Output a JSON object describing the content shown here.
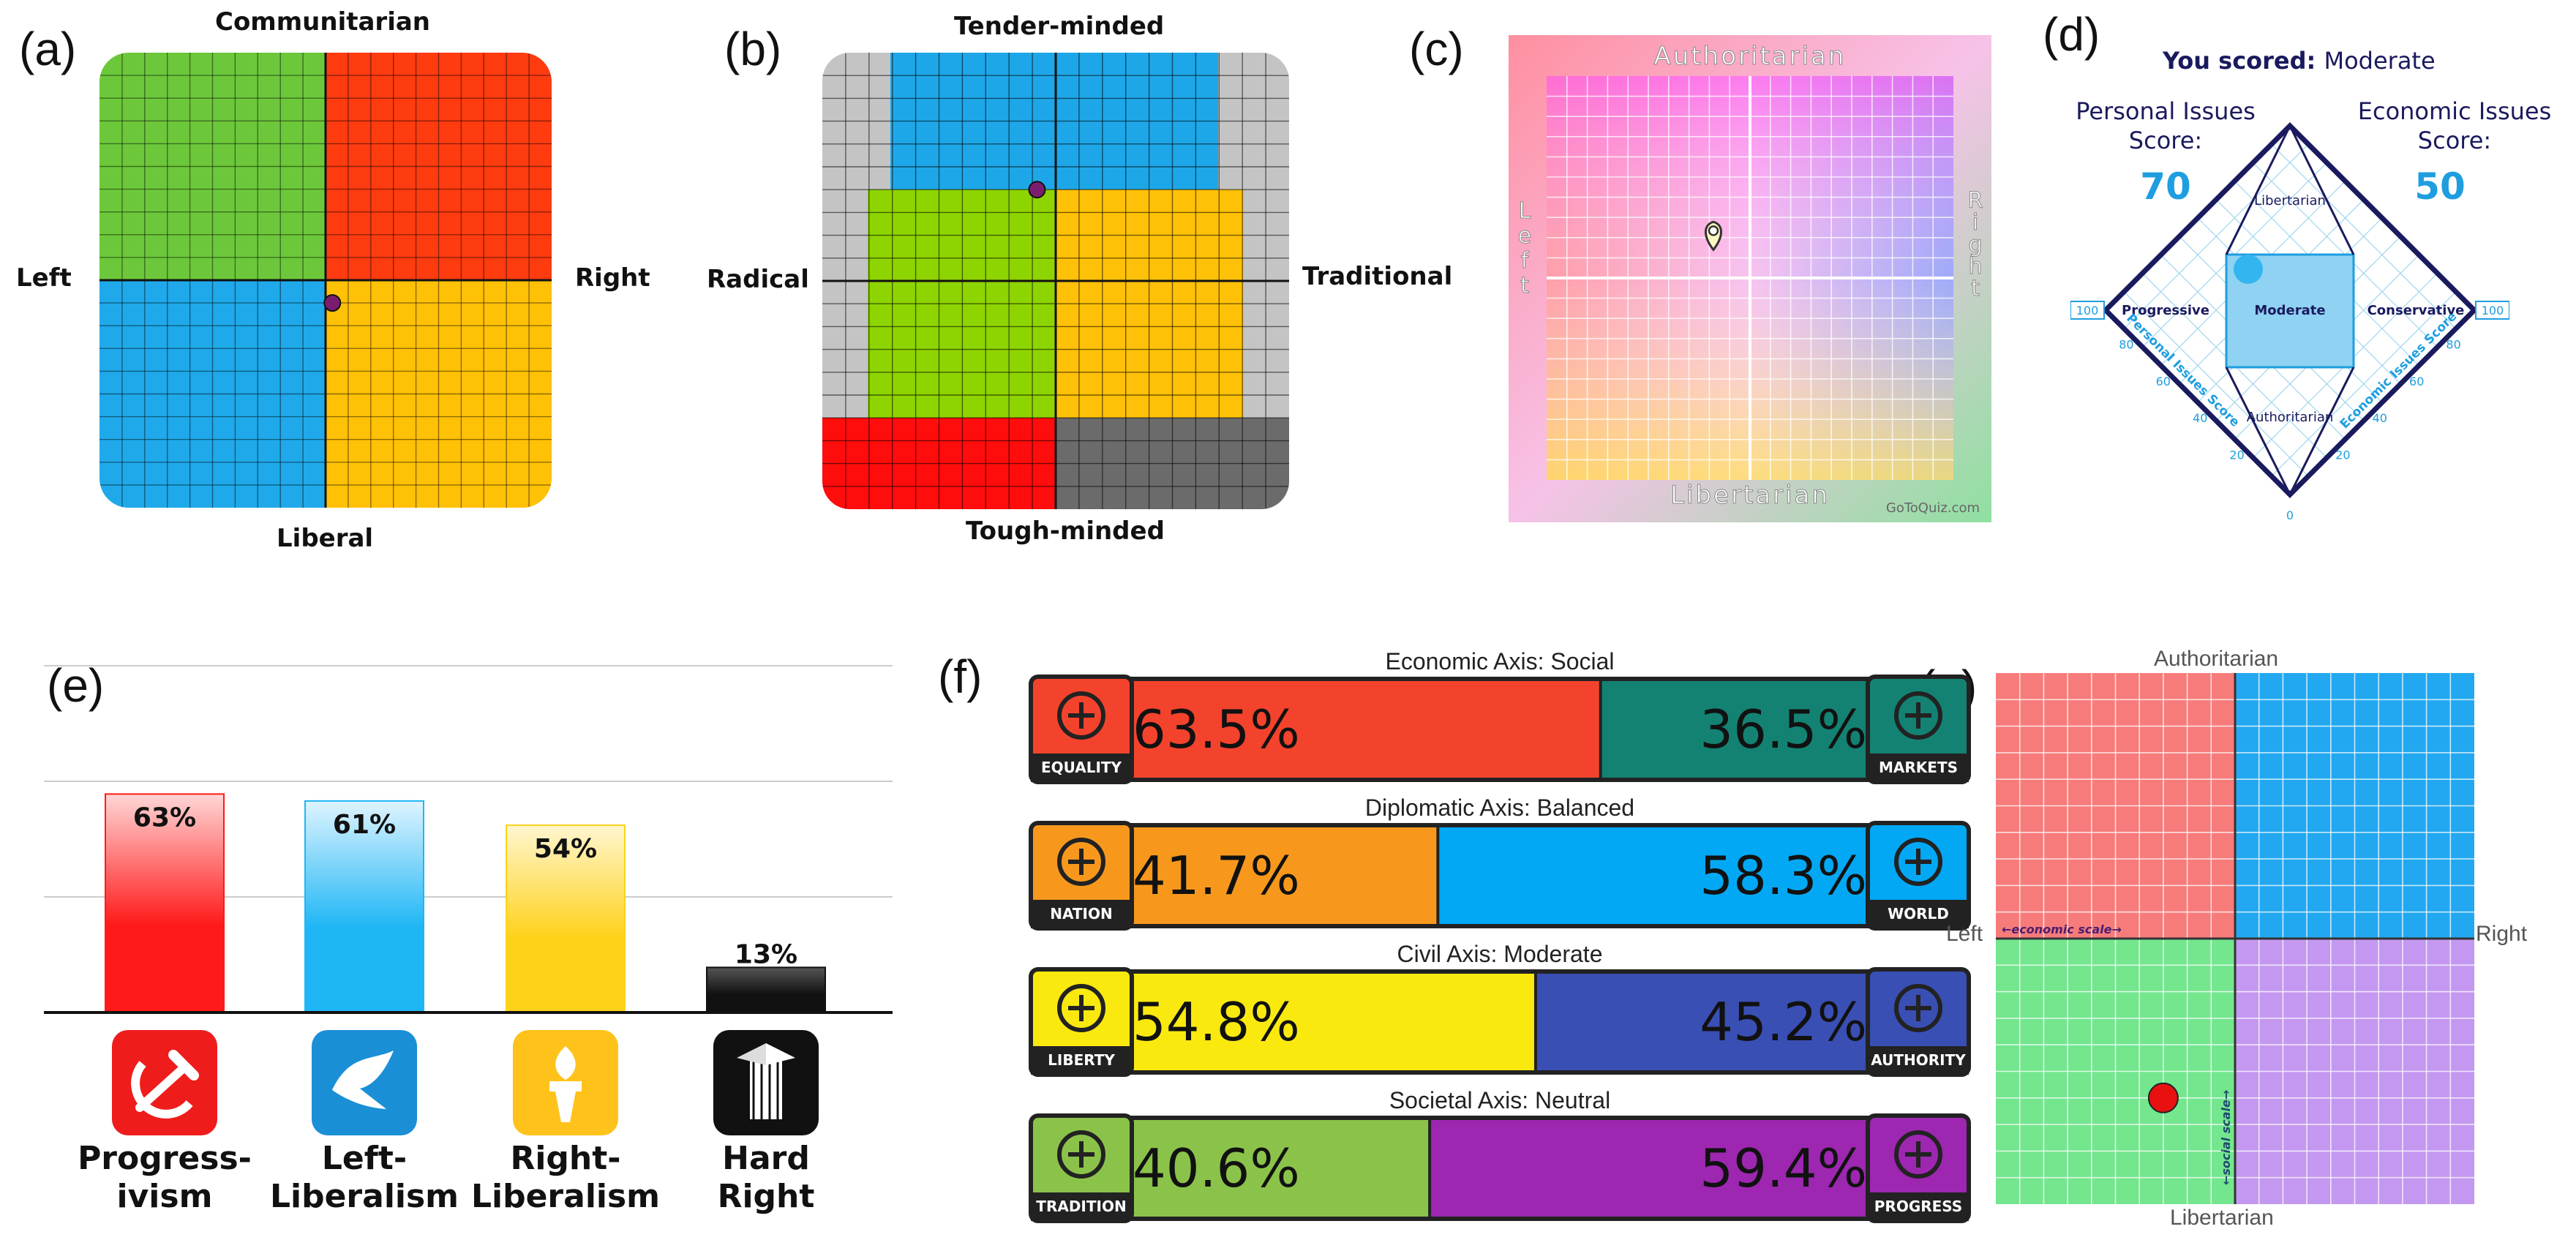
{
  "panel_letters": [
    "(a)",
    "(b)",
    "(c)",
    "(d)",
    "(e)",
    "(f)",
    "(g)"
  ],
  "chart_data": [
    {
      "panel": "a",
      "type": "scatter",
      "quadrants": {
        "top_left": "#6cc83a",
        "top_right": "#ff3b10",
        "bottom_left": "#1fa9ea",
        "bottom_right": "#ffc106"
      },
      "labels": {
        "top": "Communitarian",
        "bottom": "Liberal",
        "left": "Left",
        "right": "Right"
      },
      "xlim": [
        -10,
        10
      ],
      "ylim": [
        -10,
        10
      ],
      "point": {
        "x": 0.3,
        "y": -1.0,
        "color": "#7b1d6e"
      }
    },
    {
      "panel": "b",
      "type": "scatter",
      "labels": {
        "top": "Tender-minded",
        "bottom": "Tough-minded",
        "left": "Radical",
        "right": "Traditional"
      },
      "regions": {
        "top": "#1ea7e8",
        "left": "#8ed400",
        "right": "#ffc107",
        "bottom_left": "#ff0c0c",
        "bottom_right": "#6b6b6b",
        "background": "#c4c4c4"
      },
      "xlim": [
        -10,
        10
      ],
      "ylim": [
        -10,
        10
      ],
      "point": {
        "x": -0.8,
        "y": 4.0,
        "color": "#7b1d6e"
      }
    },
    {
      "panel": "c",
      "type": "scatter",
      "labels": {
        "top": "Authoritarian",
        "bottom": "Libertarian",
        "left": "Left",
        "right": "Right"
      },
      "watermark": "GoToQuiz.com",
      "xlim": [
        -10,
        10
      ],
      "ylim": [
        -10,
        10
      ],
      "point": {
        "x": -1.8,
        "y": 1.4
      }
    },
    {
      "panel": "d",
      "type": "scatter",
      "title_prefix": "You scored:",
      "title_value": "Moderate",
      "personal_label": [
        "Personal Issues",
        "Score:"
      ],
      "personal_value": "70",
      "economic_label": [
        "Economic Issues",
        "Score:"
      ],
      "economic_value": "50",
      "regions": [
        "Libertarian",
        "Progressive",
        "Moderate",
        "Conservative",
        "Authoritarian"
      ],
      "left_axis_title": "Personal Issues Score",
      "right_axis_title": "Economic Issues Score",
      "left_ticks": [
        "100",
        "80",
        "60",
        "40",
        "20"
      ],
      "right_ticks": [
        "100",
        "80",
        "60",
        "40",
        "20"
      ],
      "bottom_tick": "0",
      "accent": "#1e9ee0",
      "dark": "#1a1a5e"
    },
    {
      "panel": "e",
      "type": "bar",
      "categories": [
        "Progress-ivism",
        "Left-Liberalism",
        "Right-Liberalism",
        "Hard Right"
      ],
      "category_lines": [
        [
          "Progress-",
          "ivism"
        ],
        [
          "Left-",
          "Liberalism"
        ],
        [
          "Right-",
          "Liberalism"
        ],
        [
          "Hard",
          "Right"
        ]
      ],
      "values": [
        63,
        61,
        54,
        13
      ],
      "value_labels": [
        "63%",
        "61%",
        "54%",
        "13%"
      ],
      "colors": [
        "#ff1a1a",
        "#1eb6f5",
        "#ffd21a",
        "#111111"
      ],
      "ylim": [
        0,
        100
      ],
      "icons": [
        "hammer-sickle-icon",
        "dove-icon",
        "torch-icon",
        "fasces-icon"
      ]
    },
    {
      "panel": "f",
      "type": "bar",
      "axes": [
        {
          "title": "Economic Axis: Social",
          "left_label": "EQUALITY",
          "right_label": "MARKETS",
          "left_value": 63.5,
          "right_value": 36.5,
          "left_text": "63.5%",
          "right_text": "36.5%",
          "left_color": "#f4432c",
          "right_color": "#138273",
          "left_icon": "scales-icon",
          "right_icon": "dollar-icon"
        },
        {
          "title": "Diplomatic Axis: Balanced",
          "left_label": "NATION",
          "right_label": "WORLD",
          "left_value": 41.7,
          "right_value": 58.3,
          "left_text": "41.7%",
          "right_text": "58.3%",
          "left_color": "#f7981d",
          "right_color": "#03a8f4",
          "left_icon": "flag-icon",
          "right_icon": "globe-icon"
        },
        {
          "title": "Civil Axis: Moderate",
          "left_label": "LIBERTY",
          "right_label": "AUTHORITY",
          "left_value": 54.8,
          "right_value": 45.2,
          "left_text": "54.8%",
          "right_text": "45.2%",
          "left_color": "#fae90f",
          "right_color": "#3a4fb3",
          "left_icon": "statue-of-liberty-icon",
          "right_icon": "gavel-icon"
        },
        {
          "title": "Societal Axis: Neutral",
          "left_label": "TRADITION",
          "right_label": "PROGRESS",
          "left_value": 40.6,
          "right_value": 59.4,
          "left_text": "40.6%",
          "right_text": "59.4%",
          "left_color": "#8bc34a",
          "right_color": "#9d27b0",
          "left_icon": "hourglass-icon",
          "right_icon": "atom-icon"
        }
      ]
    },
    {
      "panel": "g",
      "type": "scatter",
      "labels": {
        "top": "Authoritarian",
        "bottom": "Libertarian",
        "left": "Left",
        "right": "Right"
      },
      "economic_scale": "←economic scale→",
      "social_scale": "←social scale→",
      "quadrants": {
        "top_left": "#f77b7b",
        "top_right": "#22a8f0",
        "bottom_left": "#73e68e",
        "bottom_right": "#c498f0"
      },
      "xlim": [
        -10,
        10
      ],
      "ylim": [
        -10,
        10
      ],
      "point": {
        "x": -3.0,
        "y": -6.0,
        "color": "#e81010"
      }
    }
  ]
}
